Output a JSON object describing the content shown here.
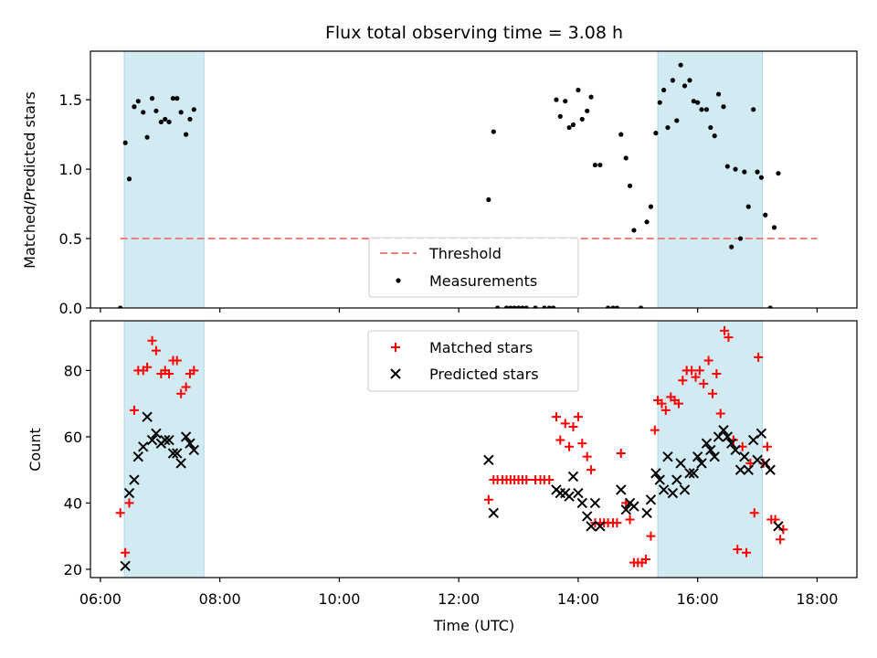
{
  "title": "Flux total observing time = 3.08 h",
  "xlabel": "Time (UTC)",
  "xticks": [
    "06:00",
    "08:00",
    "10:00",
    "12:00",
    "14:00",
    "16:00",
    "18:00"
  ],
  "colors": {
    "band": "#add8e6",
    "threshold": "#f08080",
    "matched": "#ff0000",
    "predicted": "#000000",
    "measurement": "#000000"
  },
  "chart_data": [
    {
      "type": "scatter",
      "panel": "top",
      "ylabel": "Matched/Predicted stars",
      "ylim": [
        0,
        1.85
      ],
      "yticks": [
        "0.0",
        "0.5",
        "1.0",
        "1.5"
      ],
      "xlim": [
        "05:50",
        "18:40"
      ],
      "legend": {
        "placement": "lower-center",
        "entries": [
          "Threshold",
          "Measurements"
        ]
      },
      "shaded_intervals": [
        [
          "06:24",
          "07:44"
        ],
        [
          "15:20",
          "17:05"
        ]
      ],
      "threshold": {
        "name": "Threshold",
        "y": 0.5,
        "x_range": [
          "06:20",
          "18:00"
        ]
      },
      "series": [
        {
          "name": "Measurements",
          "points": [
            [
              "06:20",
              0.0
            ],
            [
              "06:25",
              1.19
            ],
            [
              "06:29",
              0.93
            ],
            [
              "06:34",
              1.45
            ],
            [
              "06:38",
              1.49
            ],
            [
              "06:43",
              1.41
            ],
            [
              "06:47",
              1.23
            ],
            [
              "06:52",
              1.51
            ],
            [
              "06:56",
              1.42
            ],
            [
              "07:01",
              1.34
            ],
            [
              "07:05",
              1.36
            ],
            [
              "07:09",
              1.34
            ],
            [
              "07:13",
              1.51
            ],
            [
              "07:17",
              1.51
            ],
            [
              "07:21",
              1.41
            ],
            [
              "07:26",
              1.25
            ],
            [
              "07:30",
              1.36
            ],
            [
              "07:34",
              1.43
            ],
            [
              "12:30",
              0.78
            ],
            [
              "12:35",
              1.27
            ],
            [
              "12:39",
              0.0
            ],
            [
              "12:48",
              0.0
            ],
            [
              "12:52",
              0.0
            ],
            [
              "12:56",
              0.0
            ],
            [
              "13:00",
              0.0
            ],
            [
              "13:04",
              0.0
            ],
            [
              "13:08",
              0.0
            ],
            [
              "13:17",
              0.0
            ],
            [
              "13:26",
              0.0
            ],
            [
              "13:31",
              0.0
            ],
            [
              "13:35",
              0.0
            ],
            [
              "13:38",
              1.5
            ],
            [
              "13:42",
              1.38
            ],
            [
              "13:47",
              1.49
            ],
            [
              "13:51",
              1.3
            ],
            [
              "13:55",
              1.32
            ],
            [
              "14:00",
              1.57
            ],
            [
              "14:04",
              1.36
            ],
            [
              "14:09",
              1.42
            ],
            [
              "14:13",
              1.52
            ],
            [
              "14:17",
              1.03
            ],
            [
              "14:22",
              1.03
            ],
            [
              "14:30",
              0.0
            ],
            [
              "14:35",
              0.0
            ],
            [
              "14:39",
              0.0
            ],
            [
              "14:43",
              1.25
            ],
            [
              "14:48",
              1.08
            ],
            [
              "14:52",
              0.88
            ],
            [
              "14:56",
              0.56
            ],
            [
              "15:03",
              0.0
            ],
            [
              "15:09",
              0.62
            ],
            [
              "15:13",
              0.73
            ],
            [
              "15:18",
              1.26
            ],
            [
              "15:22",
              1.48
            ],
            [
              "15:26",
              1.57
            ],
            [
              "15:30",
              1.3
            ],
            [
              "15:35",
              1.64
            ],
            [
              "15:39",
              1.35
            ],
            [
              "15:43",
              1.75
            ],
            [
              "15:47",
              1.6
            ],
            [
              "15:52",
              1.64
            ],
            [
              "15:56",
              1.49
            ],
            [
              "16:00",
              1.48
            ],
            [
              "16:04",
              1.43
            ],
            [
              "16:09",
              1.43
            ],
            [
              "16:13",
              1.3
            ],
            [
              "16:17",
              1.24
            ],
            [
              "16:21",
              1.54
            ],
            [
              "16:26",
              1.45
            ],
            [
              "16:30",
              1.02
            ],
            [
              "16:34",
              0.44
            ],
            [
              "16:38",
              1.0
            ],
            [
              "16:43",
              0.5
            ],
            [
              "16:47",
              0.98
            ],
            [
              "16:51",
              0.73
            ],
            [
              "16:56",
              1.43
            ],
            [
              "17:00",
              0.98
            ],
            [
              "17:04",
              0.94
            ],
            [
              "17:08",
              0.67
            ],
            [
              "17:13",
              0.0
            ],
            [
              "17:17",
              0.58
            ],
            [
              "17:21",
              0.97
            ]
          ]
        }
      ]
    },
    {
      "type": "scatter",
      "panel": "bottom",
      "ylabel": "Count",
      "ylim": [
        17.5,
        95
      ],
      "yticks": [
        "20",
        "40",
        "60",
        "80"
      ],
      "xlim": [
        "05:50",
        "18:40"
      ],
      "legend": {
        "placement": "upper-center",
        "entries": [
          "Matched stars",
          "Predicted stars"
        ]
      },
      "shaded_intervals": [
        [
          "06:24",
          "07:44"
        ],
        [
          "15:20",
          "17:05"
        ]
      ],
      "series": [
        {
          "name": "Matched stars",
          "marker": "plus",
          "points": [
            [
              "06:20",
              37
            ],
            [
              "06:25",
              25
            ],
            [
              "06:29",
              40
            ],
            [
              "06:34",
              68
            ],
            [
              "06:38",
              80
            ],
            [
              "06:43",
              80
            ],
            [
              "06:47",
              81
            ],
            [
              "06:52",
              89
            ],
            [
              "06:56",
              86
            ],
            [
              "07:01",
              79
            ],
            [
              "07:05",
              80
            ],
            [
              "07:09",
              79
            ],
            [
              "07:13",
              83
            ],
            [
              "07:17",
              83
            ],
            [
              "07:21",
              73
            ],
            [
              "07:26",
              75
            ],
            [
              "07:30",
              79
            ],
            [
              "07:34",
              80
            ],
            [
              "12:30",
              41
            ],
            [
              "12:35",
              47
            ],
            [
              "12:39",
              47
            ],
            [
              "12:44",
              47
            ],
            [
              "12:48",
              47
            ],
            [
              "12:52",
              47
            ],
            [
              "12:56",
              47
            ],
            [
              "13:00",
              47
            ],
            [
              "13:04",
              47
            ],
            [
              "13:08",
              47
            ],
            [
              "13:17",
              47
            ],
            [
              "13:22",
              47
            ],
            [
              "13:26",
              47
            ],
            [
              "13:31",
              47
            ],
            [
              "13:38",
              66
            ],
            [
              "13:42",
              59
            ],
            [
              "13:47",
              64
            ],
            [
              "13:51",
              57
            ],
            [
              "13:55",
              63
            ],
            [
              "14:00",
              66
            ],
            [
              "14:04",
              58
            ],
            [
              "14:09",
              54
            ],
            [
              "14:13",
              50
            ],
            [
              "14:17",
              34
            ],
            [
              "14:22",
              34
            ],
            [
              "14:26",
              34
            ],
            [
              "14:30",
              34
            ],
            [
              "14:35",
              34
            ],
            [
              "14:39",
              34
            ],
            [
              "14:43",
              55
            ],
            [
              "14:48",
              40
            ],
            [
              "14:52",
              35
            ],
            [
              "14:56",
              22
            ],
            [
              "15:00",
              22
            ],
            [
              "15:04",
              22
            ],
            [
              "15:08",
              23
            ],
            [
              "15:13",
              30
            ],
            [
              "15:17",
              62
            ],
            [
              "15:20",
              71
            ],
            [
              "15:24",
              70
            ],
            [
              "15:28",
              68
            ],
            [
              "15:33",
              72
            ],
            [
              "15:37",
              71
            ],
            [
              "15:41",
              70
            ],
            [
              "15:45",
              77
            ],
            [
              "15:49",
              80
            ],
            [
              "15:54",
              80
            ],
            [
              "15:58",
              78
            ],
            [
              "16:02",
              80
            ],
            [
              "16:06",
              76
            ],
            [
              "16:11",
              83
            ],
            [
              "16:15",
              73
            ],
            [
              "16:19",
              79
            ],
            [
              "16:23",
              67
            ],
            [
              "16:27",
              92
            ],
            [
              "16:31",
              90
            ],
            [
              "16:36",
              59
            ],
            [
              "16:40",
              26
            ],
            [
              "16:45",
              57
            ],
            [
              "16:49",
              25
            ],
            [
              "16:53",
              52
            ],
            [
              "16:57",
              37
            ],
            [
              "17:01",
              84
            ],
            [
              "17:06",
              52
            ],
            [
              "17:10",
              57
            ],
            [
              "17:14",
              35
            ],
            [
              "17:18",
              35
            ],
            [
              "17:23",
              29
            ],
            [
              "17:26",
              32
            ]
          ]
        },
        {
          "name": "Predicted stars",
          "marker": "x",
          "points": [
            [
              "06:25",
              21
            ],
            [
              "06:29",
              43
            ],
            [
              "06:34",
              47
            ],
            [
              "06:38",
              54
            ],
            [
              "06:43",
              57
            ],
            [
              "06:47",
              66
            ],
            [
              "06:52",
              59
            ],
            [
              "06:56",
              61
            ],
            [
              "07:01",
              58
            ],
            [
              "07:05",
              59
            ],
            [
              "07:09",
              59
            ],
            [
              "07:13",
              55
            ],
            [
              "07:17",
              55
            ],
            [
              "07:21",
              52
            ],
            [
              "07:26",
              60
            ],
            [
              "07:30",
              58
            ],
            [
              "07:34",
              56
            ],
            [
              "12:30",
              53
            ],
            [
              "12:35",
              37
            ],
            [
              "13:38",
              44
            ],
            [
              "13:42",
              43
            ],
            [
              "13:47",
              43
            ],
            [
              "13:51",
              42
            ],
            [
              "13:55",
              48
            ],
            [
              "14:00",
              43
            ],
            [
              "14:04",
              40
            ],
            [
              "14:09",
              36
            ],
            [
              "14:13",
              33
            ],
            [
              "14:17",
              40
            ],
            [
              "14:22",
              33
            ],
            [
              "14:43",
              44
            ],
            [
              "14:48",
              38
            ],
            [
              "14:52",
              40
            ],
            [
              "14:56",
              39
            ],
            [
              "15:09",
              37
            ],
            [
              "15:13",
              41
            ],
            [
              "15:18",
              49
            ],
            [
              "15:22",
              47
            ],
            [
              "15:26",
              44
            ],
            [
              "15:30",
              54
            ],
            [
              "15:35",
              43
            ],
            [
              "15:39",
              47
            ],
            [
              "15:43",
              52
            ],
            [
              "15:47",
              44
            ],
            [
              "15:52",
              49
            ],
            [
              "15:56",
              49
            ],
            [
              "16:00",
              54
            ],
            [
              "16:04",
              52
            ],
            [
              "16:09",
              58
            ],
            [
              "16:13",
              56
            ],
            [
              "16:17",
              54
            ],
            [
              "16:21",
              60
            ],
            [
              "16:26",
              62
            ],
            [
              "16:30",
              60
            ],
            [
              "16:34",
              58
            ],
            [
              "16:38",
              56
            ],
            [
              "16:43",
              50
            ],
            [
              "16:47",
              54
            ],
            [
              "16:51",
              50
            ],
            [
              "16:56",
              59
            ],
            [
              "17:00",
              53
            ],
            [
              "17:04",
              61
            ],
            [
              "17:08",
              52
            ],
            [
              "17:13",
              50
            ],
            [
              "17:21",
              33
            ]
          ]
        }
      ]
    }
  ]
}
